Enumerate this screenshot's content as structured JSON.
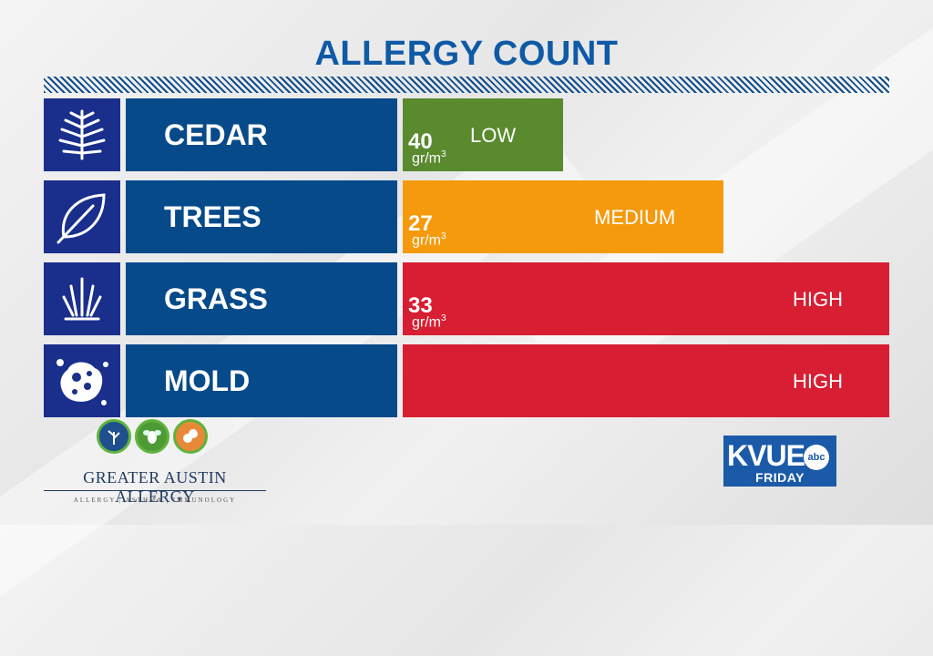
{
  "title": "ALLERGY COUNT",
  "rows": [
    {
      "name": "CEDAR",
      "icon": "cedar-icon",
      "value": "40",
      "unit": "gr/m",
      "unit_sup": "3",
      "level": "LOW",
      "color": "#5a8a2e"
    },
    {
      "name": "TREES",
      "icon": "leaf-icon",
      "value": "27",
      "unit": "gr/m",
      "unit_sup": "3",
      "level": "MEDIUM",
      "color": "#f59a0c"
    },
    {
      "name": "GRASS",
      "icon": "grass-icon",
      "value": "33",
      "unit": "gr/m",
      "unit_sup": "3",
      "level": "HIGH",
      "color": "#d81e32"
    },
    {
      "name": "MOLD",
      "icon": "mold-icon",
      "value": "",
      "unit": "",
      "unit_sup": "",
      "level": "HIGH",
      "color": "#d81e32"
    }
  ],
  "sponsor": {
    "name": "GREATER AUSTIN ALLERGY",
    "tagline": "ALLERGY | ASTHMA | IMMUNOLOGY",
    "icons": [
      "tree-circle-icon",
      "bee-circle-icon",
      "peanut-circle-icon"
    ]
  },
  "station": {
    "call_sign": "KVUE",
    "network": "abc",
    "day": "FRIDAY"
  },
  "colors": {
    "title": "#0f5aa6",
    "icon_box": "#1a2f8c",
    "name_box": "#064a8a"
  }
}
